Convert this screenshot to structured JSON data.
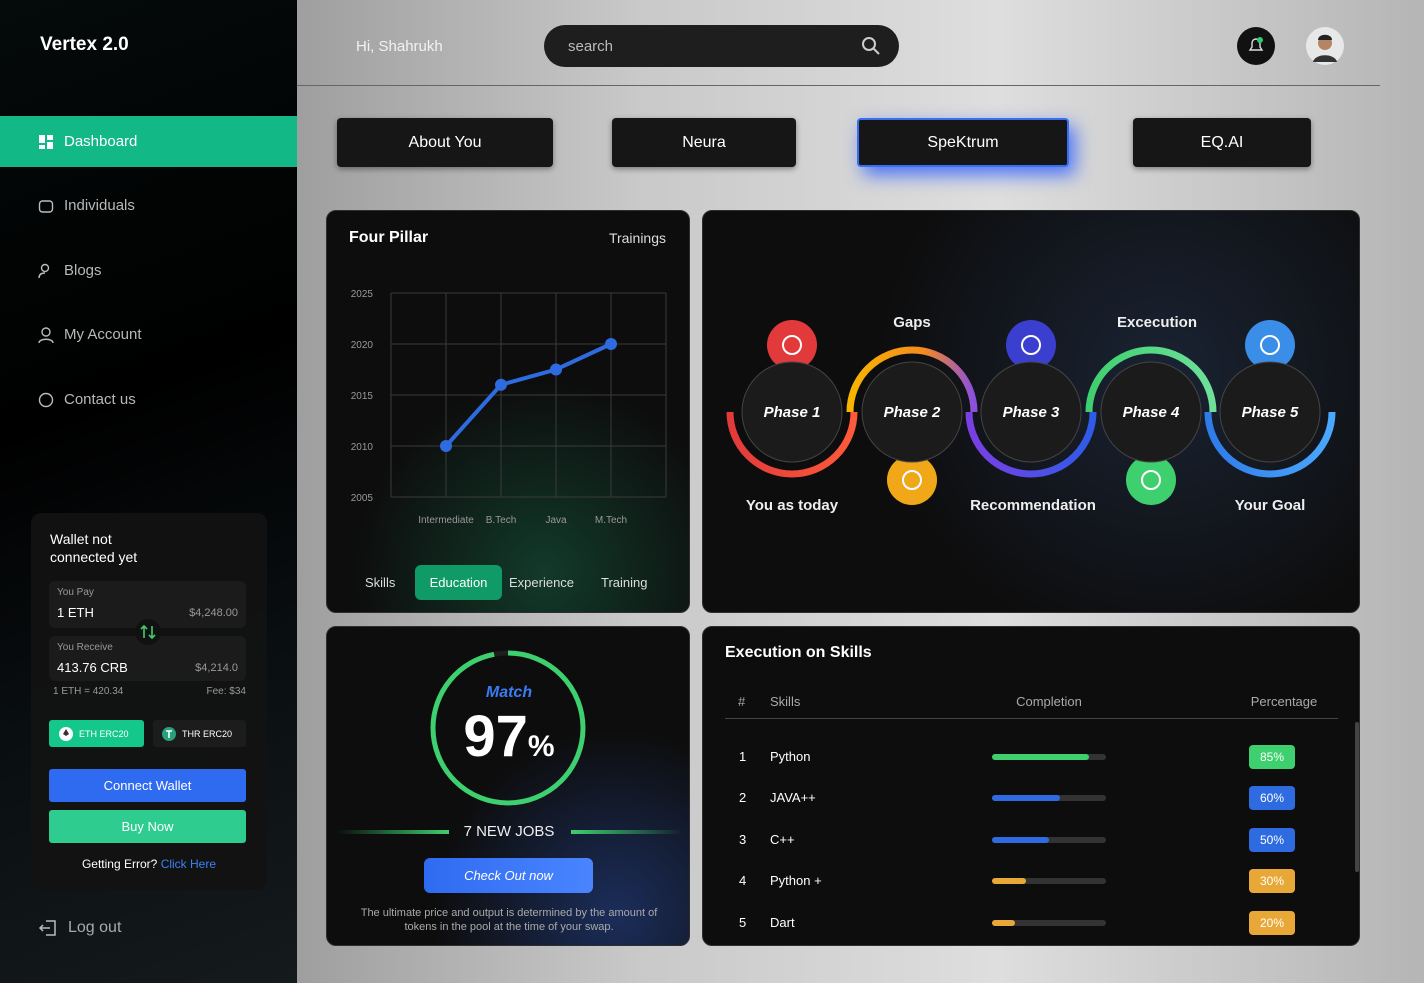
{
  "sidebar": {
    "brand": "Vertex 2.0",
    "nav": [
      "Dashboard",
      "Individuals",
      "Blogs",
      "My Account",
      "Contact us"
    ],
    "logout": "Log out"
  },
  "wallet": {
    "title": "Wallet not connected yet",
    "pay_label": "You Pay",
    "pay_amount": "1 ETH",
    "pay_value": "$4,248.00",
    "receive_label": "You Receive",
    "receive_amount": "413.76 CRB",
    "receive_value": "$4,214.0",
    "rate": "1 ETH = 420.34",
    "fee": "Fee: $34",
    "tokens": [
      "ETH ERC20",
      "THR ERC20"
    ],
    "connect": "Connect Wallet",
    "buy": "Buy Now",
    "error_text": "Getting Error?",
    "error_link": "Click Here"
  },
  "header": {
    "greeting": "Hi, Shahrukh",
    "search": "search"
  },
  "tabs": [
    "About You",
    "Neura",
    "SpeKtrum",
    "EQ.AI"
  ],
  "four_pillar": {
    "title": "Four Pillar",
    "link": "Trainings",
    "chart": {
      "type": "line",
      "categories": [
        "Intermediate",
        "B.Tech",
        "Java",
        "M.Tech"
      ],
      "values": [
        2010,
        2016,
        2017.5,
        2020
      ],
      "color": "#2f6be0",
      "ylim": [
        2005,
        2025
      ],
      "yticks": [
        2005,
        2010,
        2015,
        2020,
        2025
      ],
      "grid": true
    },
    "filters": [
      "Skills",
      "Education",
      "Experience",
      "Training"
    ]
  },
  "journey": {
    "phases": [
      "Phase 1",
      "Phase 2",
      "Phase 3",
      "Phase 4",
      "Phase 5"
    ],
    "gaps": "Gaps",
    "execution": "Excecution",
    "today": "You as today",
    "recommendation": "Recommendation",
    "goal": "Your Goal"
  },
  "match": {
    "label": "Match",
    "value": 97,
    "unit": "%",
    "jobs": "7 NEW JOBS",
    "button": "Check Out now",
    "note": "The ultimate price and output is determined by the amount of tokens in the pool at the time of your swap."
  },
  "skills": {
    "title": "Execution on Skills",
    "columns": [
      "#",
      "Skills",
      "Completion",
      "Percentage"
    ],
    "ranks": [
      1,
      2,
      3,
      4,
      5
    ],
    "names": [
      "Python",
      "JAVA++",
      "C++",
      "Python +",
      "Dart"
    ],
    "values": [
      85,
      60,
      50,
      30,
      20
    ],
    "value_labels": [
      "85%",
      "60%",
      "50%",
      "30%",
      "20%"
    ],
    "colors": [
      "#3ecf6e",
      "#2f6be0",
      "#2f6be0",
      "#e8a838",
      "#e8a838"
    ]
  }
}
